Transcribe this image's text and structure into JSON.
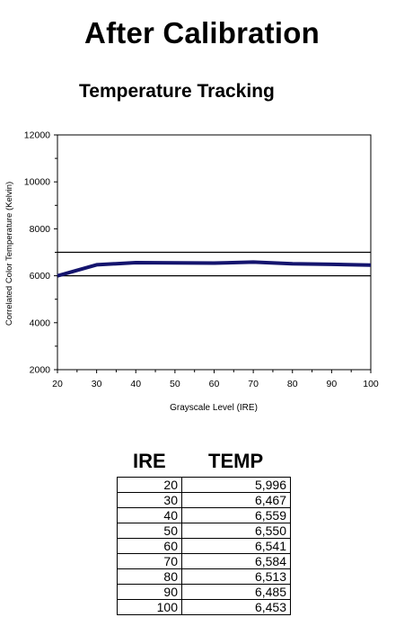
{
  "main_title": "After Calibration",
  "chart_data": {
    "type": "line",
    "title": "Temperature Tracking",
    "xlabel": "Grayscale Level (IRE)",
    "ylabel": "Correlated Color Temperature (Kelvin)",
    "x": [
      20,
      30,
      40,
      50,
      60,
      70,
      80,
      90,
      100
    ],
    "series": [
      {
        "values": [
          5996,
          6467,
          6559,
          6550,
          6541,
          6584,
          6513,
          6485,
          6453
        ],
        "color": "#14146e"
      }
    ],
    "reference_lines": [
      6000,
      7000
    ],
    "xlim": [
      20,
      100
    ],
    "ylim": [
      2000,
      12000
    ],
    "xticks": [
      "20",
      "30",
      "40",
      "50",
      "60",
      "70",
      "80",
      "90",
      "100"
    ],
    "yticks": [
      "2000",
      "4000",
      "6000",
      "8000",
      "10000",
      "12000"
    ],
    "grid": false
  },
  "table": {
    "headers": [
      "IRE",
      "TEMP"
    ],
    "rows": [
      [
        "20",
        "5,996"
      ],
      [
        "30",
        "6,467"
      ],
      [
        "40",
        "6,559"
      ],
      [
        "50",
        "6,550"
      ],
      [
        "60",
        "6,541"
      ],
      [
        "70",
        "6,584"
      ],
      [
        "80",
        "6,513"
      ],
      [
        "90",
        "6,485"
      ],
      [
        "100",
        "6,453"
      ]
    ]
  }
}
